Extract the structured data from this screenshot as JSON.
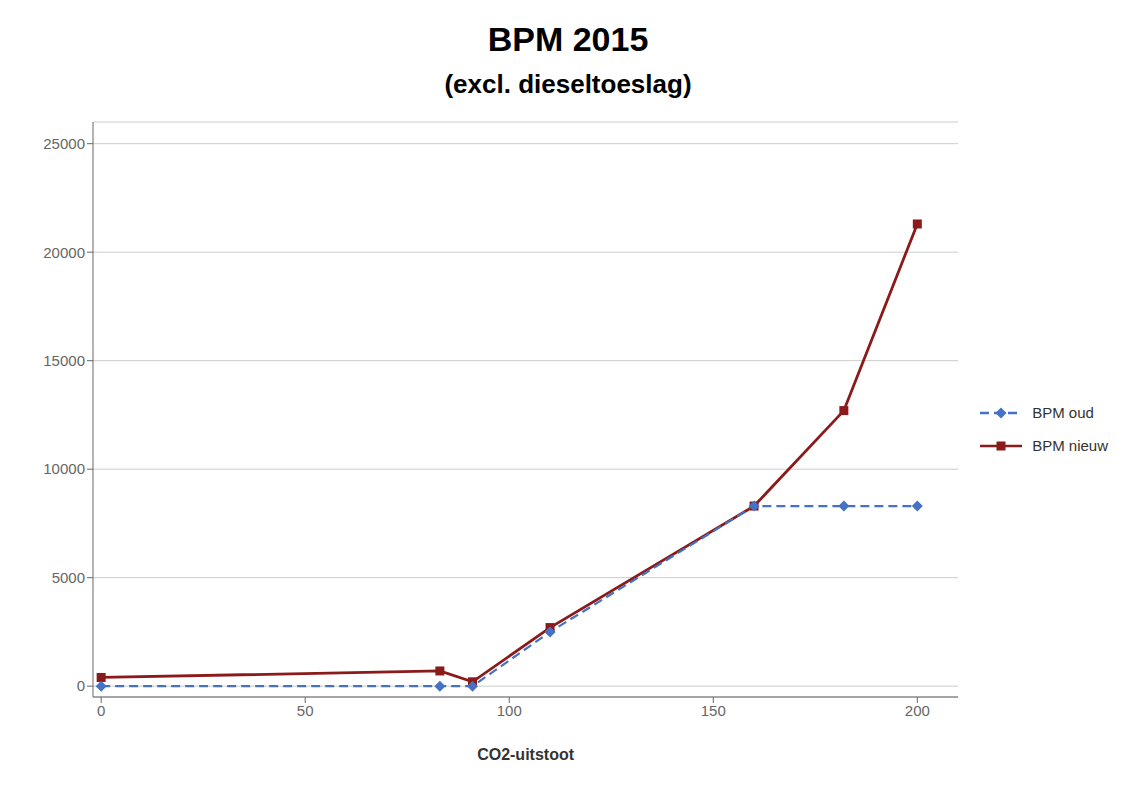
{
  "chart_data": {
    "type": "line",
    "title": "BPM 2015",
    "subtitle": "(excl. dieseltoeslag)",
    "x_label": "CO2-uitstoot",
    "x": [
      0,
      83,
      91,
      110,
      160,
      182,
      200
    ],
    "series": [
      {
        "name": "BPM oud",
        "color": "#4472C4",
        "values": [
          0,
          0,
          0,
          2500,
          8300,
          8300,
          8300
        ],
        "marker": "diamond",
        "line_style": "dashed"
      },
      {
        "name": "BPM nieuw",
        "color": "#8B1A1A",
        "values": [
          400,
          700,
          200,
          2700,
          8300,
          12700,
          21300
        ],
        "marker": "square",
        "line_style": "solid"
      }
    ],
    "xlim": [
      -2,
      210
    ],
    "ylim": [
      -500,
      26000
    ],
    "xticks": [
      0,
      50,
      100,
      150,
      200
    ],
    "yticks": [
      0,
      5000,
      10000,
      15000,
      20000,
      25000
    ],
    "grid": true,
    "legend": "right"
  }
}
